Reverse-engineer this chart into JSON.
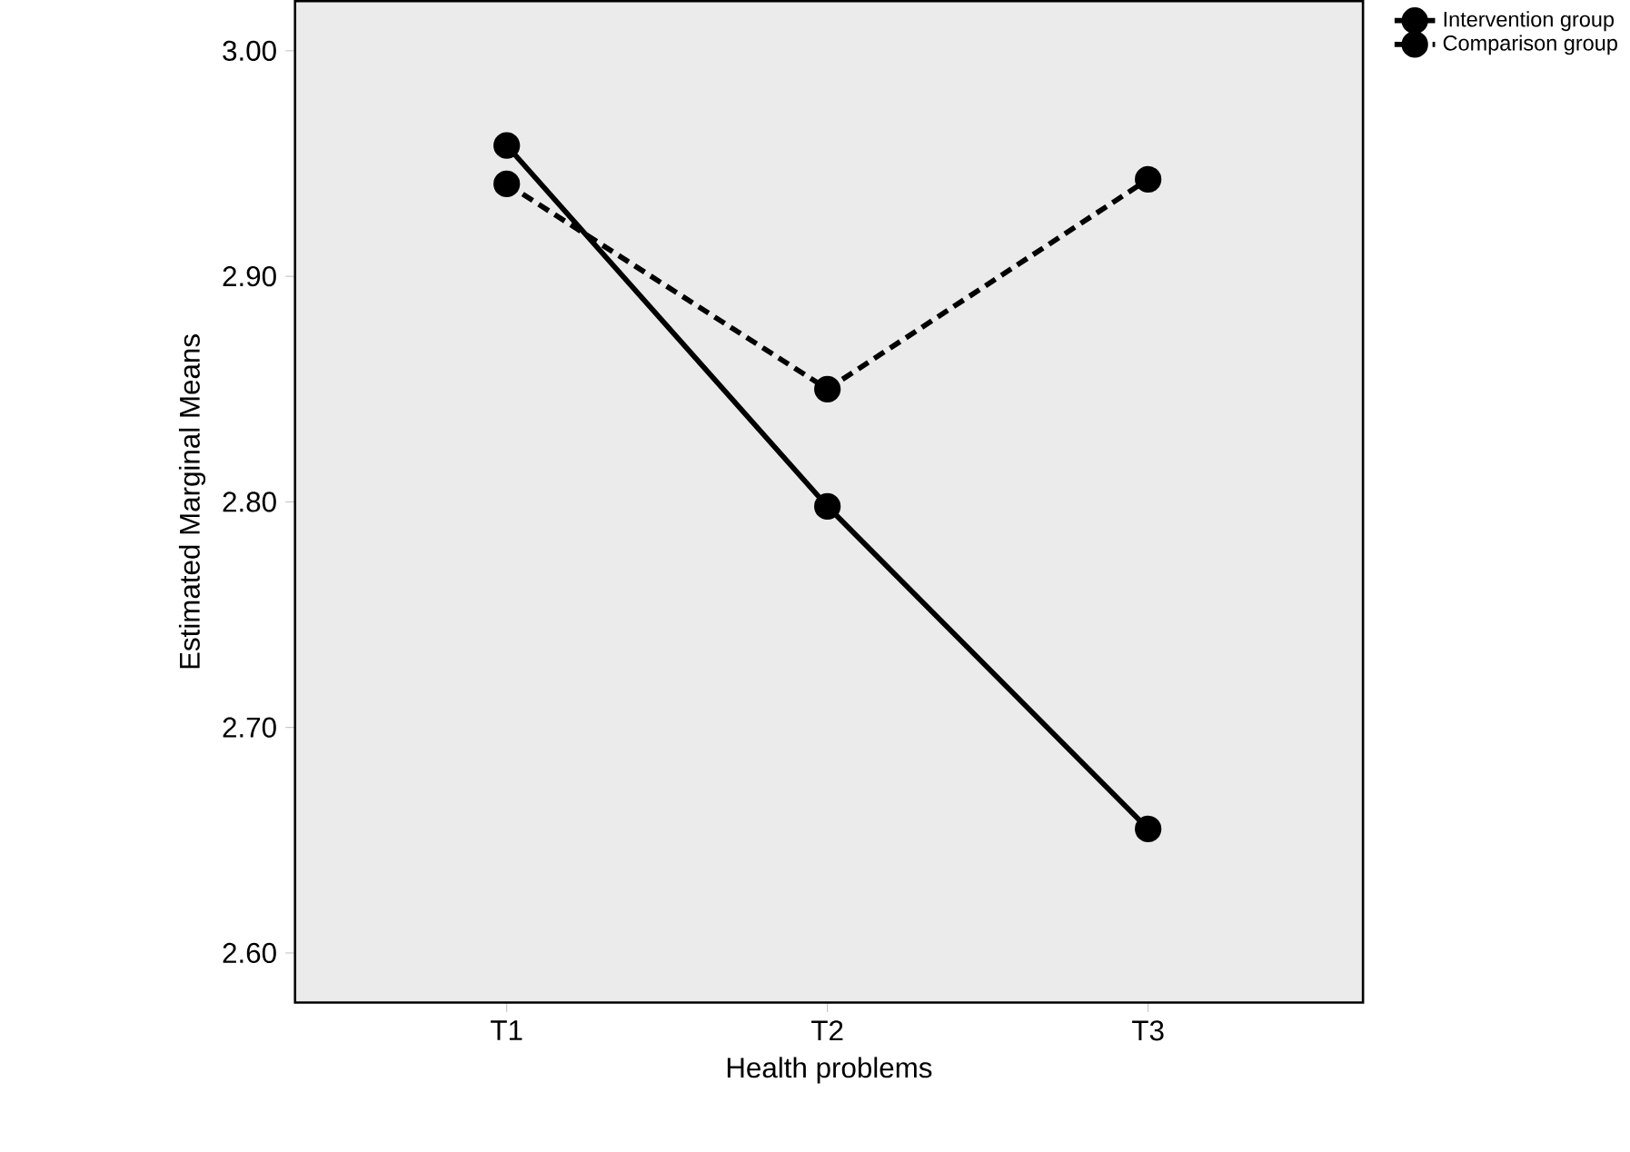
{
  "chart_data": {
    "type": "line",
    "xlabel": "Health problems",
    "ylabel": "Estimated Marginal Means",
    "categories": [
      "T1",
      "T2",
      "T3"
    ],
    "series": [
      {
        "name": "Intervention group",
        "color": "#000000",
        "line_style": "solid",
        "values": [
          2.958,
          2.798,
          2.655
        ]
      },
      {
        "name": "Comparison group",
        "color": "#000000",
        "line_style": "dashed",
        "values": [
          2.941,
          2.85,
          2.943
        ]
      }
    ],
    "ylim": [
      2.578,
      3.022
    ],
    "yticks": [
      {
        "value": 2.6,
        "label": "2.60"
      },
      {
        "value": 2.7,
        "label": "2.70"
      },
      {
        "value": 2.8,
        "label": "2.80"
      },
      {
        "value": 2.9,
        "label": "2.90"
      },
      {
        "value": 3.0,
        "label": "3.00"
      }
    ],
    "marker": "circle",
    "legend": "top right",
    "grid": false
  }
}
